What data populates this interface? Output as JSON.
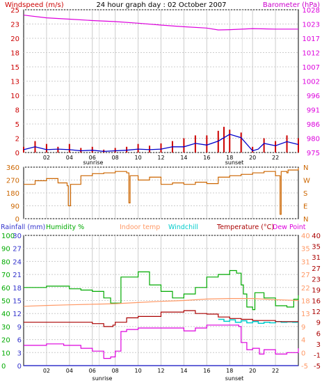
{
  "header": {
    "left_label": "Windspeed (m/s)",
    "title": "24 hour graph day : 02 October 2007",
    "right_label": "Barometer (hPa)"
  },
  "colors": {
    "windspeed": "#cc0000",
    "windgust": "#0000cc",
    "barometer": "#dd00dd",
    "winddir": "#cc6600",
    "rainfall": "#3333cc",
    "humidity": "#00aa00",
    "indoor": "#ff9966",
    "windchill": "#00cccc",
    "temperature": "#aa0000",
    "dewpoint": "#dd00dd",
    "grid": "#cccccc",
    "axis": "#000000"
  },
  "chart_data": [
    {
      "type": "line",
      "title": "24 hour graph day : 02 October 2007",
      "ylabel_left": "Windspeed (m/s)",
      "ylabel_right": "Barometer (hPa)",
      "x_ticks": [
        "02",
        "04",
        "06",
        "08",
        "10",
        "12",
        "14",
        "16",
        "18",
        "20",
        "22"
      ],
      "left_ticks": [
        0,
        2,
        5,
        8,
        10,
        13,
        15,
        18,
        20,
        23,
        25
      ],
      "right_ticks": [
        975,
        980,
        986,
        991,
        996,
        1002,
        1007,
        1012,
        1017,
        1023,
        1028
      ],
      "ylim_left": [
        0,
        25
      ],
      "ylim_right": [
        975,
        1028
      ],
      "sunrise_label": "sunrise",
      "sunset_label": "sunset",
      "sunrise_hour": 6.6,
      "sunset_hour": 19.1,
      "series": [
        {
          "name": "Barometer (hPa)",
          "axis": "right",
          "x": [
            0,
            2,
            4,
            6,
            8,
            10,
            12,
            14,
            16,
            17,
            18,
            20,
            22,
            24
          ],
          "y": [
            1026,
            1025,
            1024.5,
            1024,
            1023.6,
            1023,
            1022.3,
            1021.7,
            1021.2,
            1020.5,
            1020.6,
            1021,
            1020.8,
            1020.8
          ]
        },
        {
          "name": "Windspeed (m/s)",
          "axis": "left",
          "x": [
            0,
            1,
            2,
            3,
            4,
            5,
            6,
            7,
            8,
            9,
            10,
            11,
            12,
            13,
            14,
            15,
            16,
            17,
            18,
            19,
            20,
            20.5,
            21,
            22,
            23,
            24
          ],
          "y": [
            0.5,
            1,
            0.5,
            0.6,
            0.5,
            0.3,
            0.4,
            0.2,
            0.3,
            0.4,
            0.6,
            0.5,
            0.6,
            1,
            1,
            1.6,
            1.3,
            2,
            3.2,
            2.6,
            0.3,
            0.6,
            1.6,
            1.2,
            1.9,
            1.4
          ]
        },
        {
          "name": "Wind gust (m/s)",
          "axis": "left",
          "x": [
            0,
            1,
            2,
            3,
            4,
            5,
            6,
            7,
            8,
            9,
            10,
            11,
            12,
            13,
            14,
            15,
            16,
            17,
            17.5,
            18,
            19,
            20,
            21,
            22,
            23,
            24
          ],
          "y": [
            1,
            2,
            1.5,
            1,
            1.5,
            0.8,
            1,
            0.5,
            0.8,
            1,
            1.5,
            1.2,
            1.6,
            2,
            2.5,
            3,
            3,
            3.8,
            4.5,
            4,
            3.5,
            1,
            2.5,
            2,
            3,
            2.5
          ]
        }
      ]
    },
    {
      "type": "line",
      "y_ticks": [
        0,
        90,
        180,
        270,
        360
      ],
      "right_labels": [
        "N",
        "W",
        "S",
        "E",
        "N"
      ],
      "ylim": [
        0,
        360
      ],
      "series": [
        {
          "name": "Wind direction",
          "x": [
            0,
            1,
            2,
            3,
            3.8,
            3.9,
            4.1,
            5,
            6,
            7,
            8,
            9,
            9.2,
            9.3,
            10,
            11,
            12,
            13,
            14,
            15,
            16,
            17,
            18,
            19,
            20,
            21,
            22,
            22.4,
            22.5,
            23,
            23.1,
            24
          ],
          "y": [
            240,
            265,
            280,
            250,
            230,
            90,
            240,
            300,
            315,
            320,
            330,
            320,
            110,
            300,
            270,
            290,
            240,
            250,
            240,
            255,
            245,
            290,
            300,
            310,
            320,
            330,
            300,
            30,
            330,
            320,
            340,
            355
          ]
        }
      ]
    },
    {
      "type": "line",
      "header_labels": [
        "Rainfall (mm)",
        "Humidity %",
        "Indoor temp",
        "Windchill",
        "Temperature (°C)",
        "Dew Point"
      ],
      "rain_ticks": [
        0,
        3,
        6,
        9,
        12,
        15,
        18,
        21,
        24,
        27,
        30
      ],
      "humidity_ticks": [
        0,
        10,
        20,
        30,
        40,
        50,
        60,
        70,
        80,
        90,
        100
      ],
      "tempA_ticks": [
        -5,
        0,
        4,
        9,
        13,
        18,
        22,
        27,
        31,
        35,
        40
      ],
      "tempB_ticks": [
        -5,
        -1,
        3,
        6,
        9,
        12,
        16,
        19,
        23,
        27,
        31,
        35,
        40
      ],
      "temp_ylim": [
        -5,
        40
      ],
      "series": [
        {
          "name": "Humidity %",
          "scale": "humidity",
          "x": [
            0,
            2,
            4,
            5,
            6,
            7,
            7.6,
            8,
            8.5,
            10,
            11,
            12,
            13,
            14,
            15,
            16,
            17,
            18,
            18.6,
            19,
            19.2,
            19.5,
            20,
            20.2,
            21,
            22,
            23,
            23.6,
            24
          ],
          "y": [
            60,
            61,
            59,
            58,
            57,
            52,
            48,
            48,
            68,
            72,
            62,
            57,
            52,
            55,
            60,
            68,
            70,
            73,
            71,
            62,
            55,
            45,
            43,
            56,
            52,
            46,
            45,
            51,
            54
          ]
        },
        {
          "name": "Indoor temp",
          "scale": "temp",
          "x": [
            0,
            2,
            4,
            6,
            8,
            10,
            12,
            14,
            16,
            18,
            20,
            22,
            24
          ],
          "y": [
            15.5,
            15.8,
            16,
            16.2,
            16.4,
            16.8,
            17.2,
            17.5,
            18,
            18.2,
            18.2,
            17.8,
            17.5
          ]
        },
        {
          "name": "Windchill",
          "scale": "temp",
          "x": [
            17,
            17.5,
            18,
            18.5,
            19,
            19.5,
            20,
            20.5,
            21,
            21.5,
            22,
            22.5,
            23,
            23.5,
            24
          ],
          "y": [
            11,
            10.3,
            10.8,
            10,
            10.5,
            9.8,
            10.2,
            9.6,
            10,
            9.8,
            10.2,
            10,
            10.1,
            10,
            10
          ]
        },
        {
          "name": "Temperature (°C)",
          "scale": "temp",
          "x": [
            0,
            2,
            4,
            6,
            7,
            7.8,
            8,
            9,
            10,
            12,
            14,
            15,
            16,
            17,
            18,
            19,
            20,
            22,
            24
          ],
          "y": [
            10,
            10,
            10,
            9.5,
            8.5,
            9,
            10,
            11.5,
            12,
            13.5,
            14,
            13,
            12.8,
            11.8,
            11.3,
            11,
            10.6,
            10.2,
            10
          ]
        },
        {
          "name": "Dew Point",
          "scale": "temp",
          "x": [
            0,
            2,
            3.5,
            5,
            6,
            7,
            7.6,
            8,
            8.5,
            9,
            10,
            12,
            14,
            15,
            16,
            18,
            18.8,
            19,
            19.5,
            20,
            20.6,
            21,
            22,
            23,
            24
          ],
          "y": [
            2,
            2.5,
            2,
            1,
            0,
            -2.5,
            -2,
            0,
            6.8,
            7.5,
            8,
            8,
            7,
            8,
            9,
            9,
            8.5,
            3,
            0.5,
            1,
            -1,
            0.5,
            -1,
            -0.5,
            1
          ]
        },
        {
          "name": "Rainfall (mm)",
          "scale": "rain",
          "x": [
            0,
            24
          ],
          "y": [
            0,
            0
          ]
        }
      ]
    }
  ]
}
